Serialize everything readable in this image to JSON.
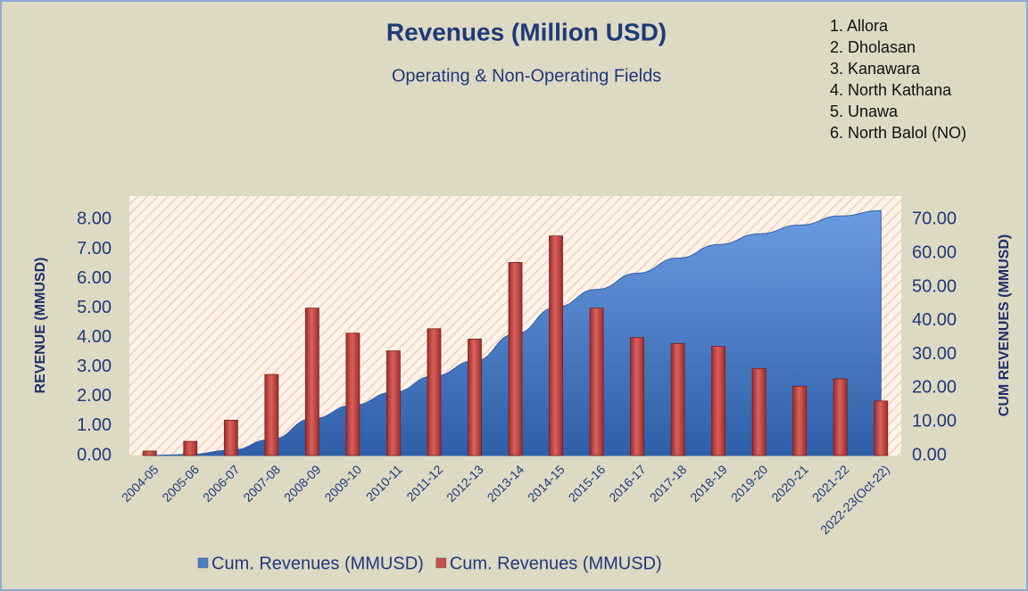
{
  "chart_data": {
    "type": "bar+area",
    "title": "Revenues (Million USD)",
    "subtitle": "Operating & Non-Operating Fields",
    "annotations": [
      "1.  Allora",
      "2.  Dholasan",
      "3.  Kanawara",
      "4.  North Kathana",
      "5.  Unawa",
      "6.  North Balol (NO)"
    ],
    "y_label": "REVENUE (MMUSD)",
    "y2_label": "CUM REVENUES (MMUSD)",
    "categories": [
      "2004-05",
      "2005-06",
      "2006-07",
      "2007-08",
      "2008-09",
      "2009-10",
      "2010-11",
      "2011-12",
      "2012-13",
      "2013-14",
      "2014-15",
      "2015-16",
      "2016-17",
      "2017-18",
      "2018-19",
      "2019-20",
      "2020-21",
      "2021-22",
      "2022-23(Oct-22)"
    ],
    "series": [
      {
        "name": "Cum. Revenues (MMUSD)",
        "type": "area",
        "axis": "y2",
        "color": "#4a7fc8",
        "values": [
          0,
          0.3,
          1.6,
          4.8,
          10.9,
          14.9,
          18.8,
          23.6,
          28.1,
          36.1,
          44.0,
          49.3,
          54.1,
          58.6,
          62.6,
          65.8,
          68.4,
          71.1,
          72.7
        ]
      },
      {
        "name": "Cum. Revenues (MMUSD)",
        "type": "bar",
        "axis": "y",
        "color": "#c0504d",
        "values": [
          0.15,
          0.48,
          1.2,
          2.75,
          5.0,
          4.15,
          3.55,
          4.3,
          3.95,
          6.55,
          7.45,
          5.0,
          4.0,
          3.8,
          3.7,
          2.95,
          2.35,
          2.6,
          1.85
        ]
      }
    ],
    "ylim": [
      0,
      8.8
    ],
    "yticks": [
      {
        "value": 0,
        "label": "0.00"
      },
      {
        "value": 1,
        "label": "1.00"
      },
      {
        "value": 2,
        "label": "2.00"
      },
      {
        "value": 3,
        "label": "3.00"
      },
      {
        "value": 4,
        "label": "4.00"
      },
      {
        "value": 5,
        "label": "5.00"
      },
      {
        "value": 6,
        "label": "6.00"
      },
      {
        "value": 7,
        "label": "7.00"
      },
      {
        "value": 8,
        "label": "8.00"
      }
    ],
    "y2lim": [
      0,
      77
    ],
    "y2ticks": [
      {
        "value": 0,
        "label": "0.00"
      },
      {
        "value": 10,
        "label": "10.00"
      },
      {
        "value": 20,
        "label": "20.00"
      },
      {
        "value": 30,
        "label": "30.00"
      },
      {
        "value": 40,
        "label": "40.00"
      },
      {
        "value": 50,
        "label": "50.00"
      },
      {
        "value": 60,
        "label": "60.00"
      },
      {
        "value": 70,
        "label": "70.00"
      }
    ],
    "legend": "bottom"
  }
}
